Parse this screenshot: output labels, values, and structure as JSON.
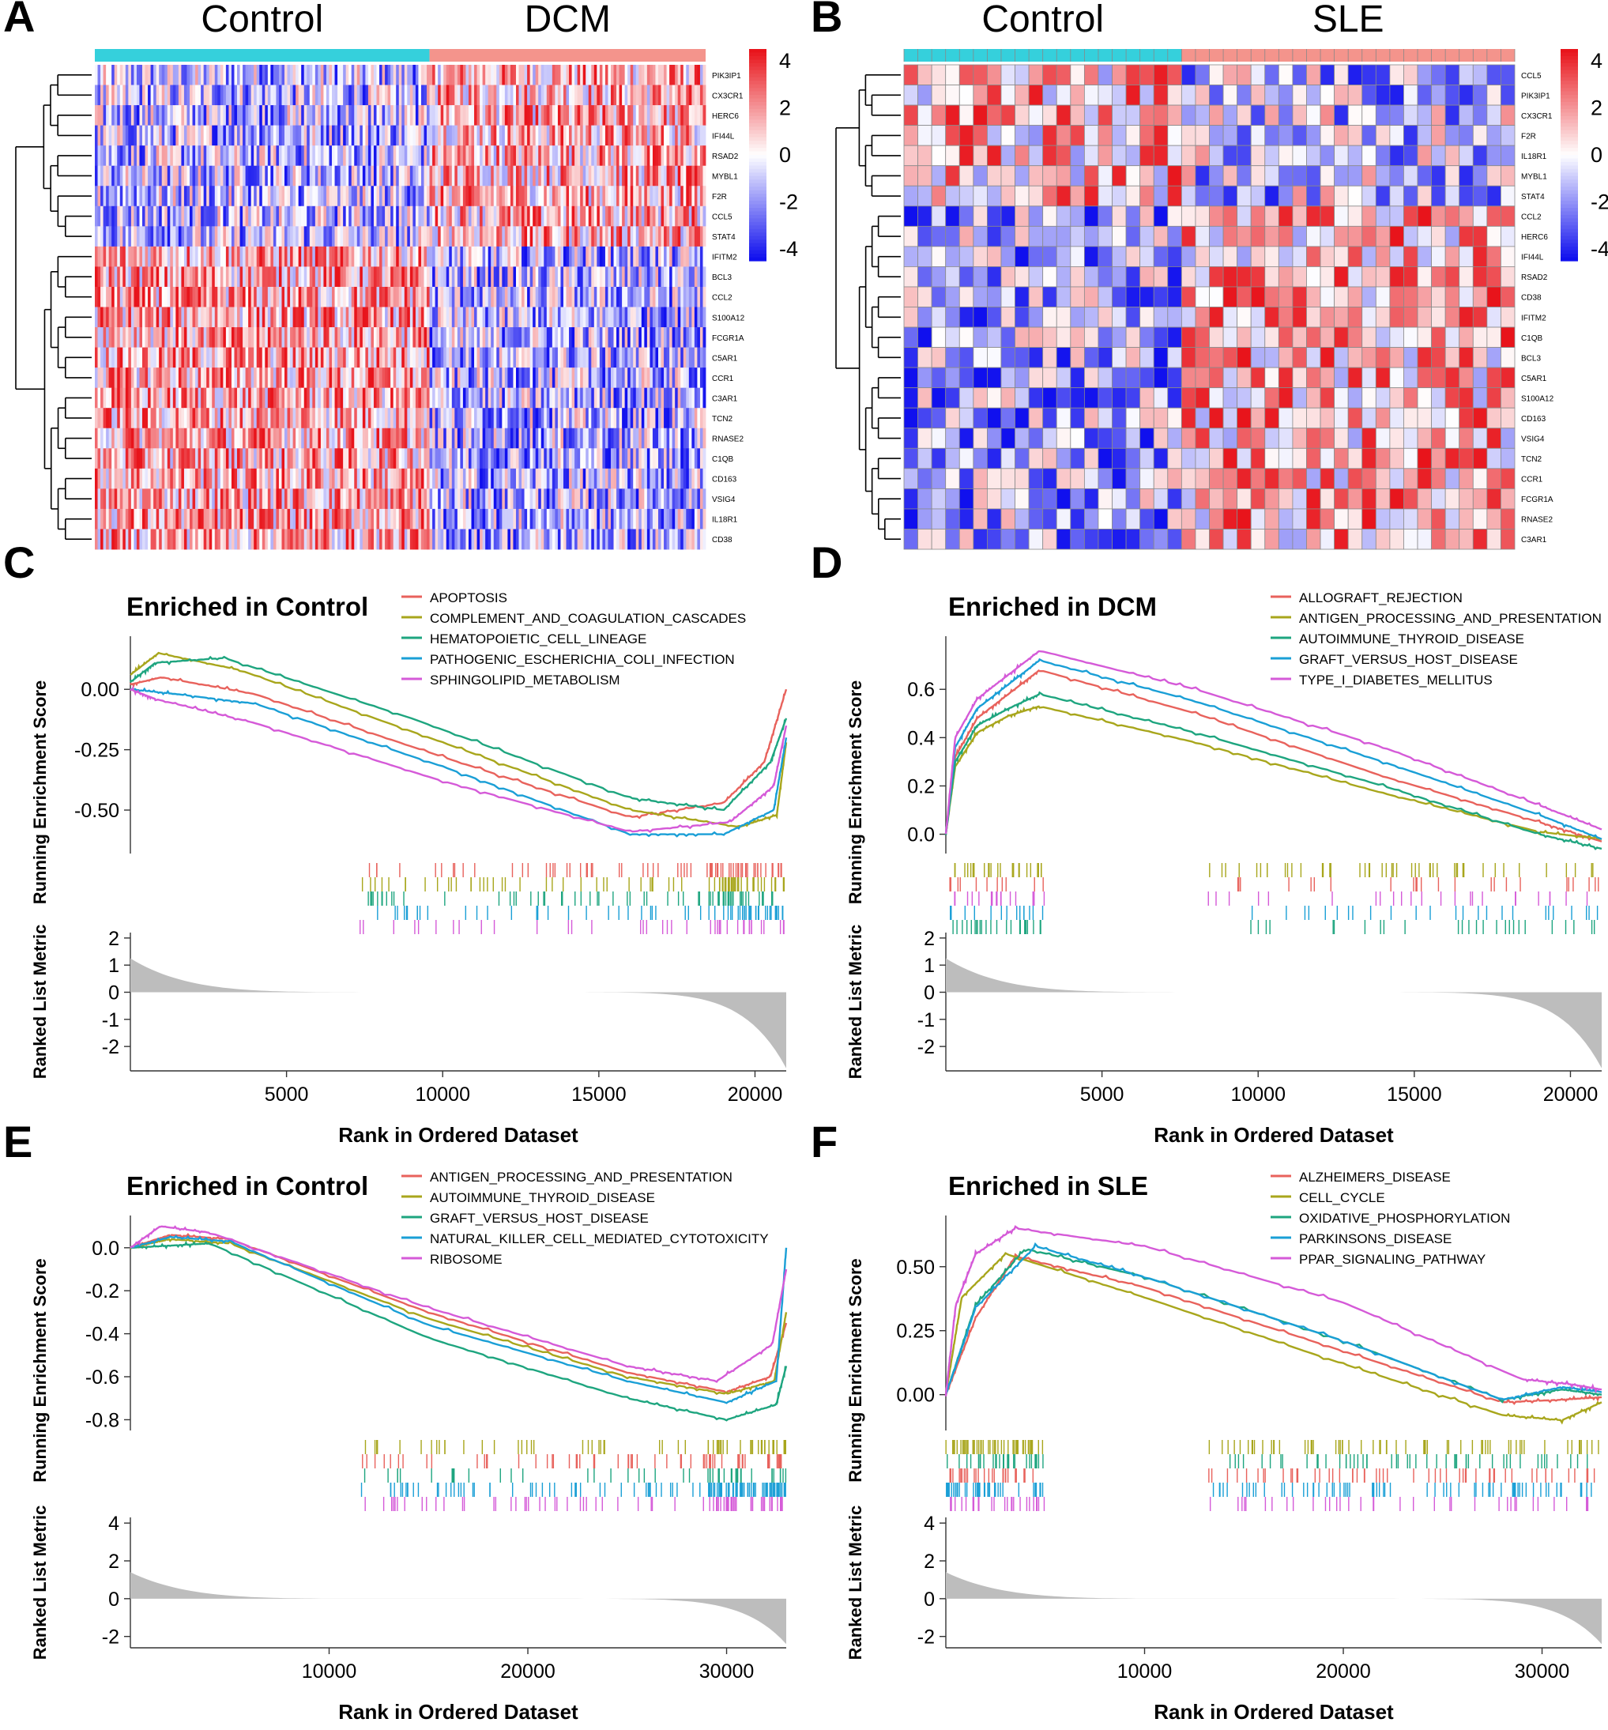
{
  "figure": {
    "colors": {
      "red": "#e8141b",
      "blue": "#1010ee",
      "white": "#ffffff",
      "teal_bar": "#35d0dc",
      "salmon_bar": "#f4948c",
      "gsea": [
        "#e8625c",
        "#a8a61c",
        "#1ea57f",
        "#1a9fd6",
        "#d55ad8"
      ],
      "metric_fill": "#bdbdbd"
    }
  },
  "chart_data": [
    {
      "panel": "A",
      "type": "heatmap",
      "groups": [
        "Control",
        "DCM"
      ],
      "genes": [
        "PIK3IP1",
        "CX3CR1",
        "HERC6",
        "IFI44L",
        "RSAD2",
        "MYBL1",
        "F2R",
        "CCL5",
        "STAT4",
        "IFITM2",
        "BCL3",
        "CCL2",
        "S100A12",
        "FCGR1A",
        "C5AR1",
        "CCR1",
        "C3AR1",
        "TCN2",
        "RNASE2",
        "C1QB",
        "CD163",
        "VSIG4",
        "IL18R1",
        "CD38"
      ],
      "legend_ticks": [
        "4",
        "2",
        "0",
        "-2",
        "-4"
      ],
      "cluster_split": 9
    },
    {
      "panel": "B",
      "type": "heatmap",
      "groups": [
        "Control",
        "SLE"
      ],
      "genes": [
        "CCL5",
        "PIK3IP1",
        "CX3CR1",
        "F2R",
        "IL18R1",
        "MYBL1",
        "STAT4",
        "CCL2",
        "HERC6",
        "IFI44L",
        "RSAD2",
        "CD38",
        "IFITM2",
        "C1QB",
        "BCL3",
        "C5AR1",
        "S100A12",
        "CD163",
        "VSIG4",
        "TCN2",
        "CCR1",
        "FCGR1A",
        "RNASE2",
        "C3AR1"
      ],
      "legend_ticks": [
        "4",
        "2",
        "0",
        "-2",
        "-4"
      ],
      "cluster_split": 7
    },
    {
      "panel": "C",
      "type": "line",
      "title": "Enriched in Control",
      "ylabel": "Running Enrichment Score",
      "ylabel2": "Ranked List Metric",
      "xlabel": "Rank in Ordered Dataset",
      "xmax": 21000,
      "ylim": [
        -0.68,
        0.22
      ],
      "yticks": [
        "0.00",
        "-0.25",
        "-0.50"
      ],
      "ytick_values": [
        0,
        -0.25,
        -0.5
      ],
      "xticks": [
        "5000",
        "10000",
        "15000",
        "20000"
      ],
      "xtick_values": [
        5000,
        10000,
        15000,
        20000
      ],
      "metric_ticks": [
        "2",
        "1",
        "0",
        "-1",
        "-2"
      ],
      "metric_tick_values": [
        2,
        1,
        0,
        -1,
        -2
      ],
      "metric_lim": [
        -2.9,
        2.2
      ],
      "metric_shape": {
        "top": 1.25,
        "bottom": -2.8,
        "zero_frac": 0.42
      },
      "series": [
        {
          "name": "APOPTOSIS",
          "points": [
            [
              0,
              0.02
            ],
            [
              1000,
              0.05
            ],
            [
              4000,
              -0.02
            ],
            [
              10000,
              -0.28
            ],
            [
              16000,
              -0.53
            ],
            [
              19000,
              -0.47
            ],
            [
              20300,
              -0.3
            ],
            [
              21000,
              0.0
            ]
          ]
        },
        {
          "name": "COMPLEMENT_AND_COAGULATION_CASCADES",
          "points": [
            [
              0,
              0.06
            ],
            [
              900,
              0.15
            ],
            [
              3500,
              0.08
            ],
            [
              10000,
              -0.22
            ],
            [
              16000,
              -0.5
            ],
            [
              19500,
              -0.57
            ],
            [
              20700,
              -0.52
            ],
            [
              21000,
              -0.22
            ]
          ]
        },
        {
          "name": "HEMATOPOIETIC_CELL_LINEAGE",
          "points": [
            [
              0,
              0.03
            ],
            [
              800,
              0.11
            ],
            [
              3000,
              0.13
            ],
            [
              9000,
              -0.12
            ],
            [
              16000,
              -0.45
            ],
            [
              19000,
              -0.5
            ],
            [
              20500,
              -0.3
            ],
            [
              21000,
              -0.12
            ]
          ]
        },
        {
          "name": "PATHOGENIC_ESCHERICHIA_COLI_INFECTION",
          "points": [
            [
              0,
              0.0
            ],
            [
              1500,
              -0.02
            ],
            [
              4000,
              -0.06
            ],
            [
              10000,
              -0.32
            ],
            [
              16000,
              -0.6
            ],
            [
              19000,
              -0.6
            ],
            [
              20600,
              -0.5
            ],
            [
              21000,
              -0.2
            ]
          ]
        },
        {
          "name": "SPHINGOLIPID_METABOLISM",
          "points": [
            [
              0,
              0.0
            ],
            [
              800,
              -0.04
            ],
            [
              4000,
              -0.14
            ],
            [
              10000,
              -0.38
            ],
            [
              16000,
              -0.59
            ],
            [
              19200,
              -0.55
            ],
            [
              20600,
              -0.4
            ],
            [
              21000,
              -0.15
            ]
          ]
        }
      ]
    },
    {
      "panel": "D",
      "type": "line",
      "title": "Enriched in DCM",
      "ylabel": "Running Enrichment Score",
      "ylabel2": "Ranked List Metric",
      "xlabel": "Rank in Ordered Dataset",
      "xmax": 21000,
      "ylim": [
        -0.08,
        0.82
      ],
      "yticks": [
        "0.6",
        "0.4",
        "0.2",
        "0.0"
      ],
      "ytick_values": [
        0.6,
        0.4,
        0.2,
        0.0
      ],
      "xticks": [
        "5000",
        "10000",
        "15000",
        "20000"
      ],
      "xtick_values": [
        5000,
        10000,
        15000,
        20000
      ],
      "metric_ticks": [
        "2",
        "1",
        "0",
        "-1",
        "-2"
      ],
      "metric_tick_values": [
        2,
        1,
        0,
        -1,
        -2
      ],
      "metric_lim": [
        -2.9,
        2.2
      ],
      "metric_shape": {
        "top": 1.25,
        "bottom": -2.8,
        "zero_frac": 0.42
      },
      "series": [
        {
          "name": "ALLOGRAFT_REJECTION",
          "points": [
            [
              0,
              0.0
            ],
            [
              300,
              0.32
            ],
            [
              1000,
              0.48
            ],
            [
              2000,
              0.58
            ],
            [
              3000,
              0.68
            ],
            [
              8000,
              0.5
            ],
            [
              14000,
              0.24
            ],
            [
              19000,
              0.05
            ],
            [
              21000,
              -0.03
            ]
          ]
        },
        {
          "name": "ANTIGEN_PROCESSING_AND_PRESENTATION",
          "points": [
            [
              0,
              0.0
            ],
            [
              300,
              0.28
            ],
            [
              1000,
              0.42
            ],
            [
              2000,
              0.49
            ],
            [
              3000,
              0.53
            ],
            [
              8000,
              0.38
            ],
            [
              14000,
              0.17
            ],
            [
              19000,
              0.01
            ],
            [
              21000,
              -0.02
            ]
          ]
        },
        {
          "name": "AUTOIMMUNE_THYROID_DISEASE",
          "points": [
            [
              0,
              0.0
            ],
            [
              300,
              0.3
            ],
            [
              1000,
              0.45
            ],
            [
              2000,
              0.52
            ],
            [
              3000,
              0.58
            ],
            [
              8000,
              0.42
            ],
            [
              14000,
              0.2
            ],
            [
              19000,
              0.0
            ],
            [
              21000,
              -0.06
            ]
          ]
        },
        {
          "name": "GRAFT_VERSUS_HOST_DISEASE",
          "points": [
            [
              0,
              0.0
            ],
            [
              300,
              0.36
            ],
            [
              1000,
              0.52
            ],
            [
              2000,
              0.62
            ],
            [
              3000,
              0.72
            ],
            [
              8000,
              0.55
            ],
            [
              14000,
              0.3
            ],
            [
              19000,
              0.08
            ],
            [
              21000,
              -0.02
            ]
          ]
        },
        {
          "name": "TYPE_I_DIABETES_MELLITUS",
          "points": [
            [
              0,
              0.0
            ],
            [
              300,
              0.4
            ],
            [
              1000,
              0.56
            ],
            [
              2000,
              0.66
            ],
            [
              3000,
              0.76
            ],
            [
              8000,
              0.6
            ],
            [
              14000,
              0.36
            ],
            [
              19000,
              0.12
            ],
            [
              21000,
              0.02
            ]
          ]
        }
      ]
    },
    {
      "panel": "E",
      "type": "line",
      "title": "Enriched in Control",
      "ylabel": "Running Enrichment Score",
      "ylabel2": "Ranked List Metric",
      "xlabel": "Rank in Ordered Dataset",
      "xmax": 33000,
      "ylim": [
        -0.85,
        0.15
      ],
      "yticks": [
        "0.0",
        "-0.2",
        "-0.4",
        "-0.6",
        "-0.8"
      ],
      "ytick_values": [
        0,
        -0.2,
        -0.4,
        -0.6,
        -0.8
      ],
      "xticks": [
        "10000",
        "20000",
        "30000"
      ],
      "xtick_values": [
        10000,
        20000,
        30000
      ],
      "metric_ticks": [
        "4",
        "2",
        "0",
        "-2"
      ],
      "metric_tick_values": [
        4,
        2,
        0,
        -2
      ],
      "metric_lim": [
        -2.6,
        4.3
      ],
      "metric_shape": {
        "top": 1.4,
        "bottom": -2.4,
        "zero_frac": 0.22
      },
      "series": [
        {
          "name": "ANTIGEN_PROCESSING_AND_PRESENTATION",
          "points": [
            [
              0,
              0.0
            ],
            [
              2000,
              0.06
            ],
            [
              5000,
              0.04
            ],
            [
              15000,
              -0.3
            ],
            [
              25000,
              -0.58
            ],
            [
              30000,
              -0.67
            ],
            [
              32200,
              -0.6
            ],
            [
              33000,
              -0.35
            ]
          ]
        },
        {
          "name": "AUTOIMMUNE_THYROID_DISEASE",
          "points": [
            [
              0,
              0.0
            ],
            [
              2000,
              0.04
            ],
            [
              5000,
              0.02
            ],
            [
              15000,
              -0.33
            ],
            [
              25000,
              -0.6
            ],
            [
              30000,
              -0.68
            ],
            [
              32400,
              -0.62
            ],
            [
              33000,
              -0.3
            ]
          ]
        },
        {
          "name": "GRAFT_VERSUS_HOST_DISEASE",
          "points": [
            [
              0,
              0.0
            ],
            [
              2000,
              0.01
            ],
            [
              4000,
              0.02
            ],
            [
              15000,
              -0.42
            ],
            [
              25000,
              -0.7
            ],
            [
              30000,
              -0.8
            ],
            [
              32500,
              -0.73
            ],
            [
              33000,
              -0.55
            ]
          ]
        },
        {
          "name": "NATURAL_KILLER_CELL_MEDIATED_CYTOTOXICITY",
          "points": [
            [
              0,
              0.0
            ],
            [
              2000,
              0.05
            ],
            [
              5000,
              0.03
            ],
            [
              15000,
              -0.36
            ],
            [
              25000,
              -0.62
            ],
            [
              30000,
              -0.72
            ],
            [
              32500,
              -0.62
            ],
            [
              33000,
              0.0
            ]
          ]
        },
        {
          "name": "RIBOSOME",
          "points": [
            [
              0,
              0.0
            ],
            [
              1500,
              0.1
            ],
            [
              4000,
              0.07
            ],
            [
              15000,
              -0.28
            ],
            [
              25000,
              -0.55
            ],
            [
              29500,
              -0.62
            ],
            [
              32300,
              -0.45
            ],
            [
              33000,
              -0.1
            ]
          ]
        }
      ]
    },
    {
      "panel": "F",
      "type": "line",
      "title": "Enriched in SLE",
      "ylabel": "Running Enrichment Score",
      "ylabel2": "Ranked List Metric",
      "xlabel": "Rank in Ordered Dataset",
      "xmax": 33000,
      "ylim": [
        -0.14,
        0.7
      ],
      "yticks": [
        "0.50",
        "0.25",
        "0.00"
      ],
      "ytick_values": [
        0.5,
        0.25,
        0.0
      ],
      "xticks": [
        "10000",
        "20000",
        "30000"
      ],
      "xtick_values": [
        10000,
        20000,
        30000
      ],
      "metric_ticks": [
        "4",
        "2",
        "0",
        "-2"
      ],
      "metric_tick_values": [
        4,
        2,
        0,
        -2
      ],
      "metric_lim": [
        -2.6,
        4.3
      ],
      "metric_shape": {
        "top": 1.4,
        "bottom": -2.4,
        "zero_frac": 0.22
      },
      "series": [
        {
          "name": "ALZHEIMERS_DISEASE",
          "points": [
            [
              0,
              0.0
            ],
            [
              1500,
              0.3
            ],
            [
              3500,
              0.54
            ],
            [
              10000,
              0.42
            ],
            [
              20000,
              0.17
            ],
            [
              28000,
              -0.03
            ],
            [
              31000,
              -0.02
            ],
            [
              33000,
              -0.01
            ]
          ]
        },
        {
          "name": "CELL_CYCLE",
          "points": [
            [
              0,
              0.0
            ],
            [
              800,
              0.38
            ],
            [
              3000,
              0.55
            ],
            [
              10000,
              0.38
            ],
            [
              20000,
              0.12
            ],
            [
              28000,
              -0.08
            ],
            [
              31000,
              -0.1
            ],
            [
              33000,
              -0.03
            ]
          ]
        },
        {
          "name": "OXIDATIVE_PHOSPHORYLATION",
          "points": [
            [
              0,
              0.0
            ],
            [
              1500,
              0.35
            ],
            [
              4000,
              0.57
            ],
            [
              10000,
              0.46
            ],
            [
              20000,
              0.21
            ],
            [
              28000,
              -0.02
            ],
            [
              31000,
              0.02
            ],
            [
              33000,
              0.0
            ]
          ]
        },
        {
          "name": "PARKINSONS_DISEASE",
          "points": [
            [
              0,
              0.0
            ],
            [
              1500,
              0.34
            ],
            [
              4500,
              0.58
            ],
            [
              10000,
              0.46
            ],
            [
              20000,
              0.21
            ],
            [
              28000,
              -0.02
            ],
            [
              31000,
              0.03
            ],
            [
              33000,
              0.01
            ]
          ]
        },
        {
          "name": "PPAR_SIGNALING_PATHWAY",
          "points": [
            [
              0,
              0.0
            ],
            [
              500,
              0.35
            ],
            [
              1500,
              0.55
            ],
            [
              3500,
              0.65
            ],
            [
              10000,
              0.58
            ],
            [
              20000,
              0.36
            ],
            [
              29000,
              0.06
            ],
            [
              31500,
              0.04
            ],
            [
              33000,
              0.02
            ]
          ]
        }
      ]
    }
  ]
}
